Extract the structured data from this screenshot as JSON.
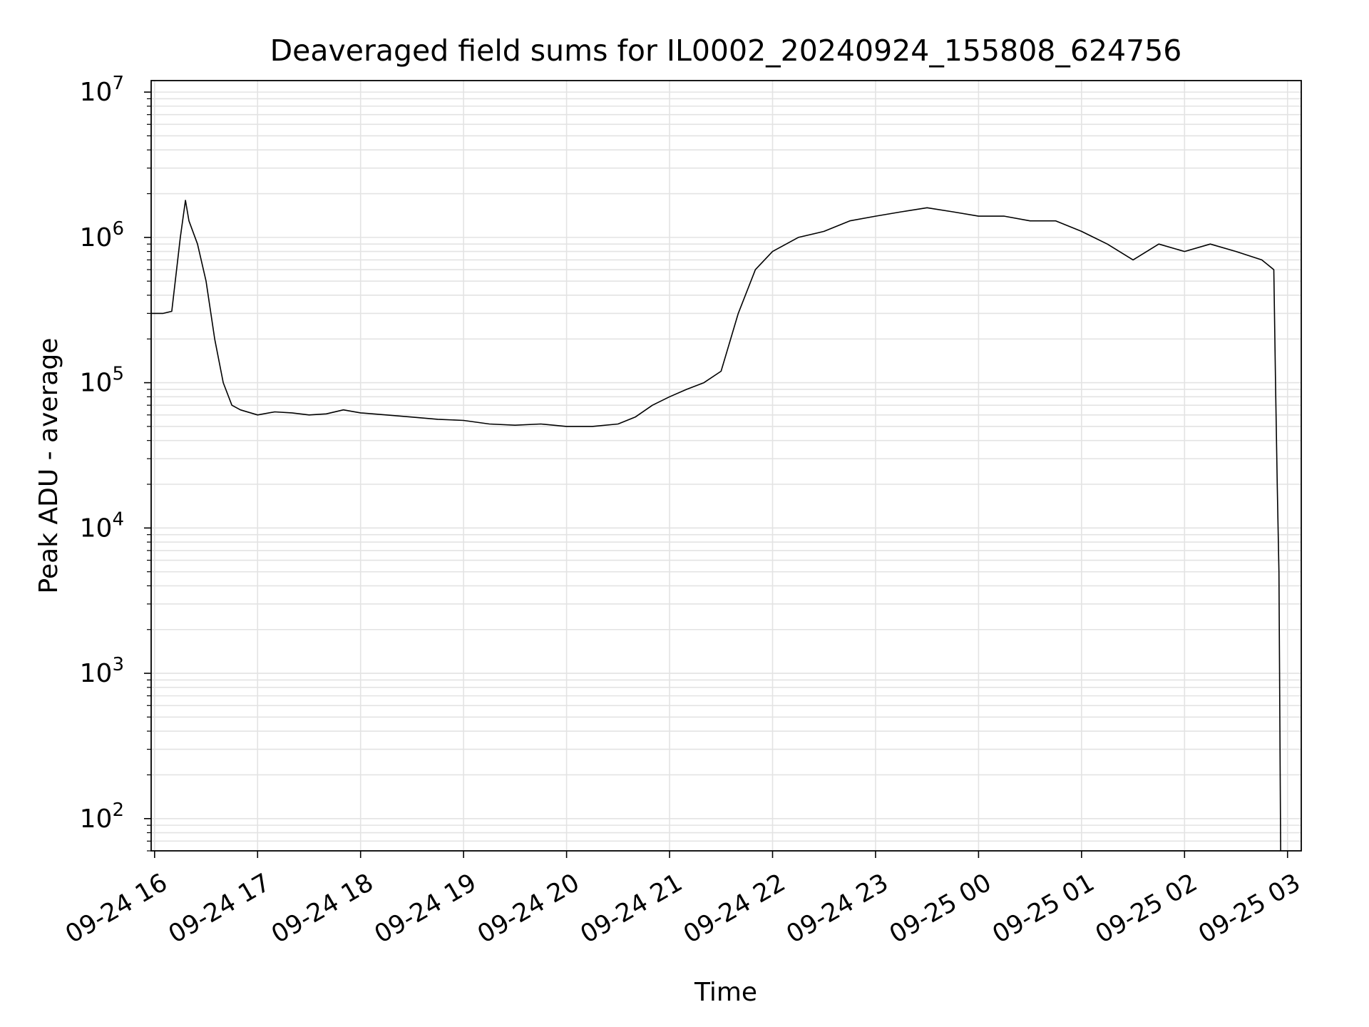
{
  "chart_data": {
    "type": "line",
    "title": "Deaveraged field sums for IL0002_20240924_155808_624756",
    "xlabel": "Time",
    "ylabel": "Peak ADU - average",
    "yscale": "log",
    "ylim": [
      60,
      12000000
    ],
    "xlim": [
      "2024-09-24 15:58",
      "2024-09-25 03:08"
    ],
    "grid": true,
    "line_color": "#000000",
    "x_ticks": [
      {
        "value": "2024-09-24 16:00",
        "label": "09-24 16"
      },
      {
        "value": "2024-09-24 17:00",
        "label": "09-24 17"
      },
      {
        "value": "2024-09-24 18:00",
        "label": "09-24 18"
      },
      {
        "value": "2024-09-24 19:00",
        "label": "09-24 19"
      },
      {
        "value": "2024-09-24 20:00",
        "label": "09-24 20"
      },
      {
        "value": "2024-09-24 21:00",
        "label": "09-24 21"
      },
      {
        "value": "2024-09-24 22:00",
        "label": "09-24 22"
      },
      {
        "value": "2024-09-24 23:00",
        "label": "09-24 23"
      },
      {
        "value": "2024-09-25 00:00",
        "label": "09-25 00"
      },
      {
        "value": "2024-09-25 01:00",
        "label": "09-25 01"
      },
      {
        "value": "2024-09-25 02:00",
        "label": "09-25 02"
      },
      {
        "value": "2024-09-25 03:00",
        "label": "09-25 03"
      }
    ],
    "y_ticks": [
      {
        "value": 100,
        "base": "10",
        "exp": "2"
      },
      {
        "value": 1000,
        "base": "10",
        "exp": "3"
      },
      {
        "value": 10000,
        "base": "10",
        "exp": "4"
      },
      {
        "value": 100000,
        "base": "10",
        "exp": "5"
      },
      {
        "value": 1000000,
        "base": "10",
        "exp": "6"
      },
      {
        "value": 10000000,
        "base": "10",
        "exp": "7"
      }
    ],
    "series": [
      {
        "x": [
          "2024-09-24 15:58",
          "2024-09-24 16:05",
          "2024-09-24 16:10",
          "2024-09-24 16:15",
          "2024-09-24 16:18",
          "2024-09-24 16:20",
          "2024-09-24 16:25",
          "2024-09-24 16:30",
          "2024-09-24 16:35",
          "2024-09-24 16:40",
          "2024-09-24 16:45",
          "2024-09-24 16:50",
          "2024-09-24 17:00",
          "2024-09-24 17:10",
          "2024-09-24 17:20",
          "2024-09-24 17:30",
          "2024-09-24 17:40",
          "2024-09-24 17:50",
          "2024-09-24 18:00",
          "2024-09-24 18:15",
          "2024-09-24 18:30",
          "2024-09-24 18:45",
          "2024-09-24 19:00",
          "2024-09-24 19:15",
          "2024-09-24 19:30",
          "2024-09-24 19:45",
          "2024-09-24 20:00",
          "2024-09-24 20:15",
          "2024-09-24 20:30",
          "2024-09-24 20:40",
          "2024-09-24 20:50",
          "2024-09-24 21:00",
          "2024-09-24 21:10",
          "2024-09-24 21:20",
          "2024-09-24 21:30",
          "2024-09-24 21:40",
          "2024-09-24 21:50",
          "2024-09-24 22:00",
          "2024-09-24 22:15",
          "2024-09-24 22:30",
          "2024-09-24 22:45",
          "2024-09-24 23:00",
          "2024-09-24 23:15",
          "2024-09-24 23:30",
          "2024-09-24 23:45",
          "2024-09-25 00:00",
          "2024-09-25 00:15",
          "2024-09-25 00:30",
          "2024-09-25 00:45",
          "2024-09-25 01:00",
          "2024-09-25 01:15",
          "2024-09-25 01:30",
          "2024-09-25 01:45",
          "2024-09-25 02:00",
          "2024-09-25 02:15",
          "2024-09-25 02:30",
          "2024-09-25 02:45",
          "2024-09-25 02:52",
          "2024-09-25 02:53",
          "2024-09-25 02:54",
          "2024-09-25 02:55",
          "2024-09-25 02:56"
        ],
        "y": [
          300000,
          300000,
          310000,
          1000000,
          1800000,
          1300000,
          900000,
          500000,
          200000,
          100000,
          70000,
          65000,
          60000,
          63000,
          62000,
          60000,
          61000,
          65000,
          62000,
          60000,
          58000,
          56000,
          55000,
          52000,
          51000,
          52000,
          50000,
          50000,
          52000,
          58000,
          70000,
          80000,
          90000,
          100000,
          120000,
          300000,
          600000,
          800000,
          1000000,
          1100000,
          1300000,
          1400000,
          1500000,
          1600000,
          1500000,
          1400000,
          1400000,
          1300000,
          1300000,
          1100000,
          900000,
          700000,
          900000,
          800000,
          900000,
          800000,
          700000,
          600000,
          100000,
          20000,
          5000,
          60
        ]
      }
    ]
  }
}
